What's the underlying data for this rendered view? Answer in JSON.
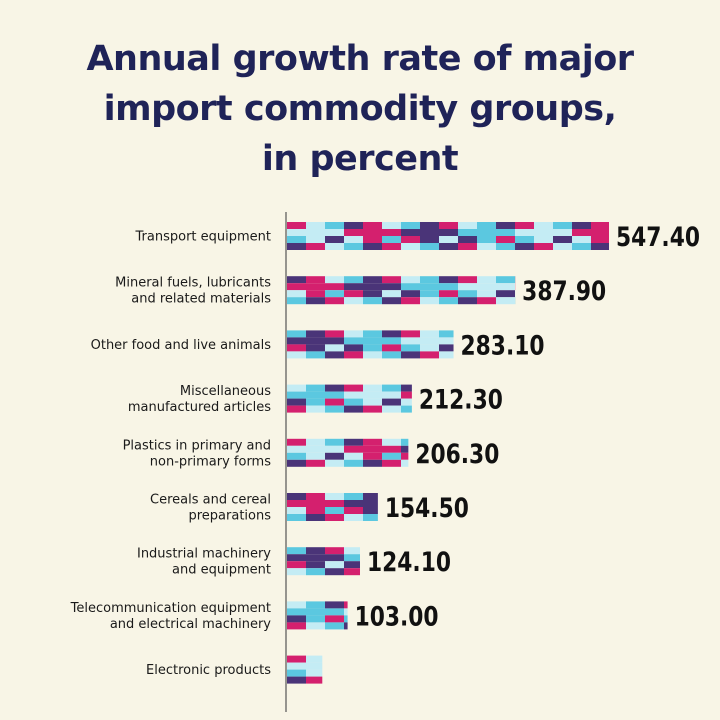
{
  "title_lines": [
    "Annual growth rate of major",
    "import commodity groups,",
    "in percent"
  ],
  "colors": {
    "background": "#f8f5e6",
    "title": "#1f2358",
    "tile_palette": [
      "#d4206e",
      "#4a3478",
      "#5bc8e0",
      "#c4ecf4"
    ]
  },
  "chart_data": {
    "type": "bar",
    "orientation": "horizontal",
    "title": "Annual growth rate of major import commodity groups, in percent",
    "categories": [
      [
        "Transport equipment"
      ],
      [
        "Mineral fuels, lubricants",
        "and related materials"
      ],
      [
        "Other food and live animals"
      ],
      [
        "Miscellaneous",
        "manufactured articles"
      ],
      [
        "Plastics in primary and",
        "non-primary forms"
      ],
      [
        "Cereals and cereal",
        "preparations"
      ],
      [
        "Industrial machinery",
        "and equipment"
      ],
      [
        "Telecommunication equipment",
        "and electrical machinery"
      ],
      [
        "Electronic products"
      ]
    ],
    "values": [
      547.4,
      387.9,
      283.1,
      212.3,
      206.3,
      154.5,
      124.1,
      103.0,
      60.0
    ],
    "value_labels": [
      "547.40",
      "387.90",
      "283.10",
      "212.30",
      "206.30",
      "154.50",
      "124.10",
      "103.00",
      ""
    ],
    "xlim": [
      0,
      547.4
    ],
    "grid": false,
    "legend": "none"
  }
}
